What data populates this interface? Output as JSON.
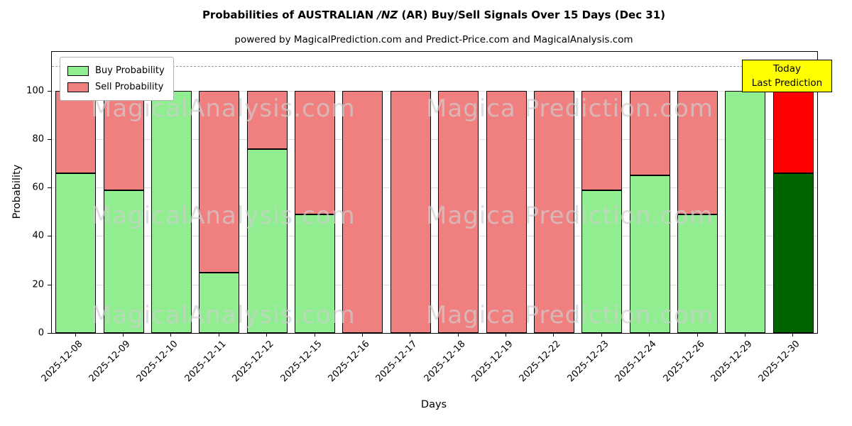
{
  "title": {
    "prefix": "Probabilities of AUSTRALIAN ",
    "italic": "/NZ",
    "suffix": " (AR) Buy/Sell Signals Over 15 Days (Dec 31)"
  },
  "subtitle": "powered by MagicalPrediction.com and Predict-Price.com and MagicalAnalysis.com",
  "annotation": {
    "line1": "Today",
    "line2": "Last Prediction"
  },
  "watermarks": {
    "left": "MagicalAnalysis.com",
    "right": "Magica Prediction.com"
  },
  "chart_data": {
    "type": "bar",
    "stacked": true,
    "title": "Probabilities of AUSTRALIAN /NZ (AR) Buy/Sell Signals Over 15 Days (Dec 31)",
    "xlabel": "Days",
    "ylabel": "Probability",
    "ylim": [
      0,
      116
    ],
    "yticks": [
      0,
      20,
      40,
      60,
      80,
      100
    ],
    "dashed_line_y": 110,
    "grid": true,
    "legend_position": "upper left",
    "categories": [
      "2025-12-08",
      "2025-12-09",
      "2025-12-10",
      "2025-12-11",
      "2025-12-12",
      "2025-12-15",
      "2025-12-16",
      "2025-12-17",
      "2025-12-18",
      "2025-12-19",
      "2025-12-22",
      "2025-12-23",
      "2025-12-24",
      "2025-12-26",
      "2025-12-29",
      "2025-12-30"
    ],
    "series": [
      {
        "name": "Buy Probability",
        "color": "#90ee90",
        "last_color": "#006400",
        "values": [
          66,
          59,
          100,
          25,
          76,
          49,
          0,
          0,
          0,
          0,
          0,
          59,
          65,
          49,
          100,
          66
        ]
      },
      {
        "name": "Sell Probability",
        "color": "#f08080",
        "last_color": "#ff0000",
        "values": [
          34,
          41,
          0,
          75,
          24,
          51,
          100,
          100,
          100,
          100,
          100,
          41,
          35,
          51,
          0,
          34
        ]
      }
    ]
  }
}
